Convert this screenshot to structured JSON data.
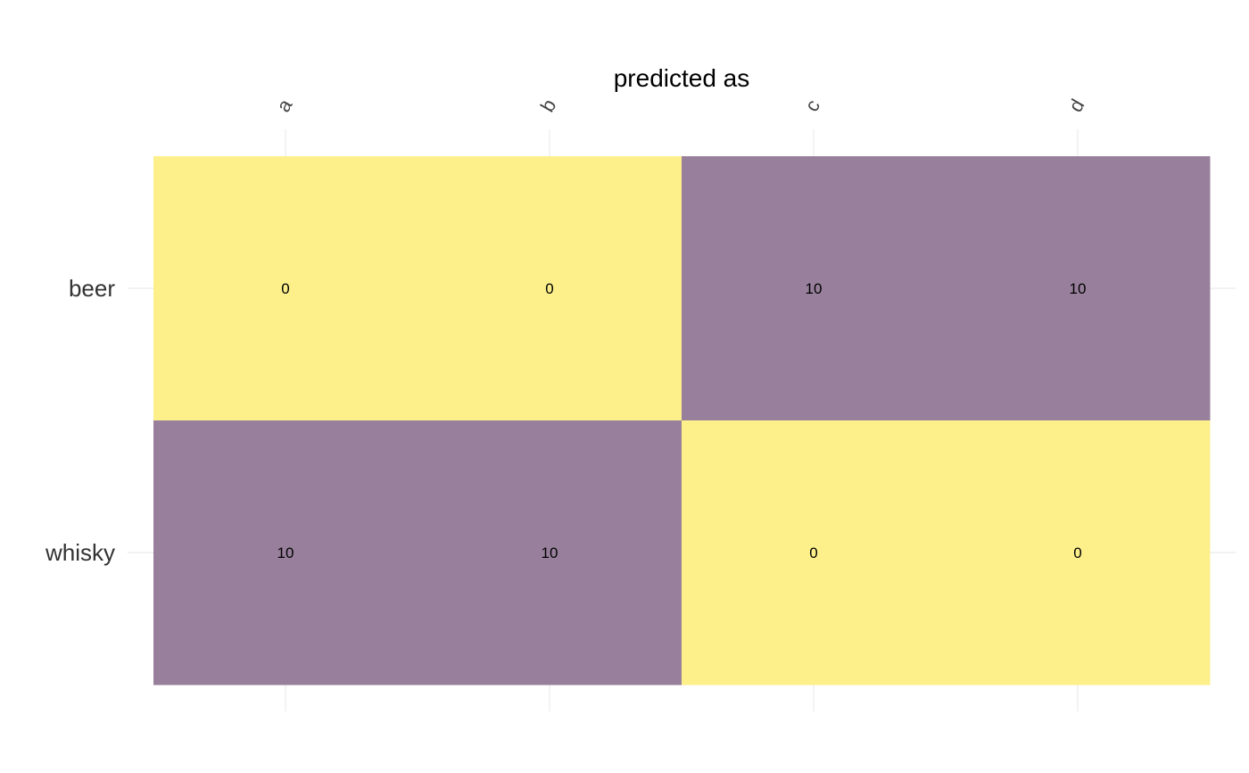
{
  "chart_data": {
    "type": "heatmap",
    "title": "predicted as",
    "x_categories": [
      "a",
      "b",
      "c",
      "d"
    ],
    "y_categories": [
      "beer",
      "whisky"
    ],
    "values": [
      [
        0,
        0,
        10,
        10
      ],
      [
        10,
        10,
        0,
        0
      ]
    ],
    "color_low": "#fdf08b",
    "color_high": "#98809c",
    "grid": true,
    "x_axis_position": "top",
    "x_tick_rotation": "rotated -60 degrees"
  }
}
